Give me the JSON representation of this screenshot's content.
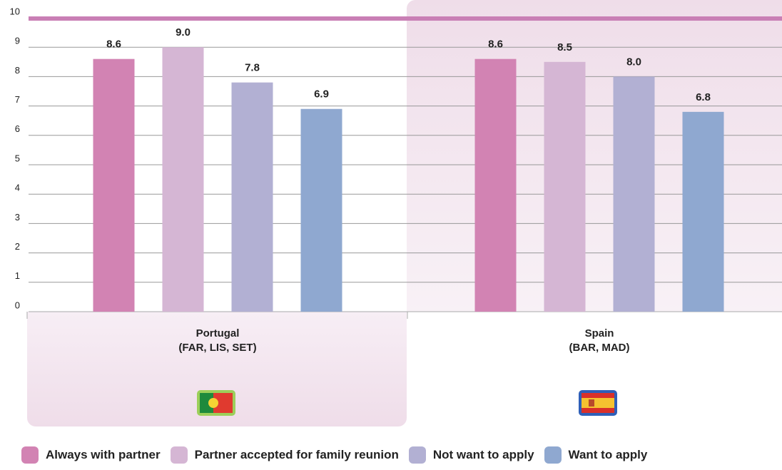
{
  "chart_data": {
    "type": "bar",
    "categories": [
      "Portugal\n(FAR, LIS, SET)",
      "Spain\n(BAR, MAD)"
    ],
    "series": [
      {
        "name": "Always with partner",
        "color": "#d283b3",
        "values": [
          8.6,
          8.6
        ],
        "value_labels": [
          "8.6",
          "8.6"
        ]
      },
      {
        "name": "Partner accepted for family reunion",
        "color": "#d5b6d4",
        "values": [
          9.0,
          8.5
        ],
        "value_labels": [
          "9.0",
          "8.5"
        ]
      },
      {
        "name": "Not want to apply",
        "color": "#b2b0d3",
        "values": [
          7.8,
          8.0
        ],
        "value_labels": [
          "7.8",
          "8.0"
        ]
      },
      {
        "name": "Want to apply",
        "color": "#8fa8d0",
        "values": [
          6.9,
          6.8
        ],
        "value_labels": [
          "6.9",
          "6.8"
        ]
      }
    ],
    "ylim": [
      0,
      10
    ],
    "yticks": [
      0,
      1,
      2,
      3,
      4,
      5,
      6,
      7,
      8,
      9,
      10
    ],
    "grid": true
  }
}
